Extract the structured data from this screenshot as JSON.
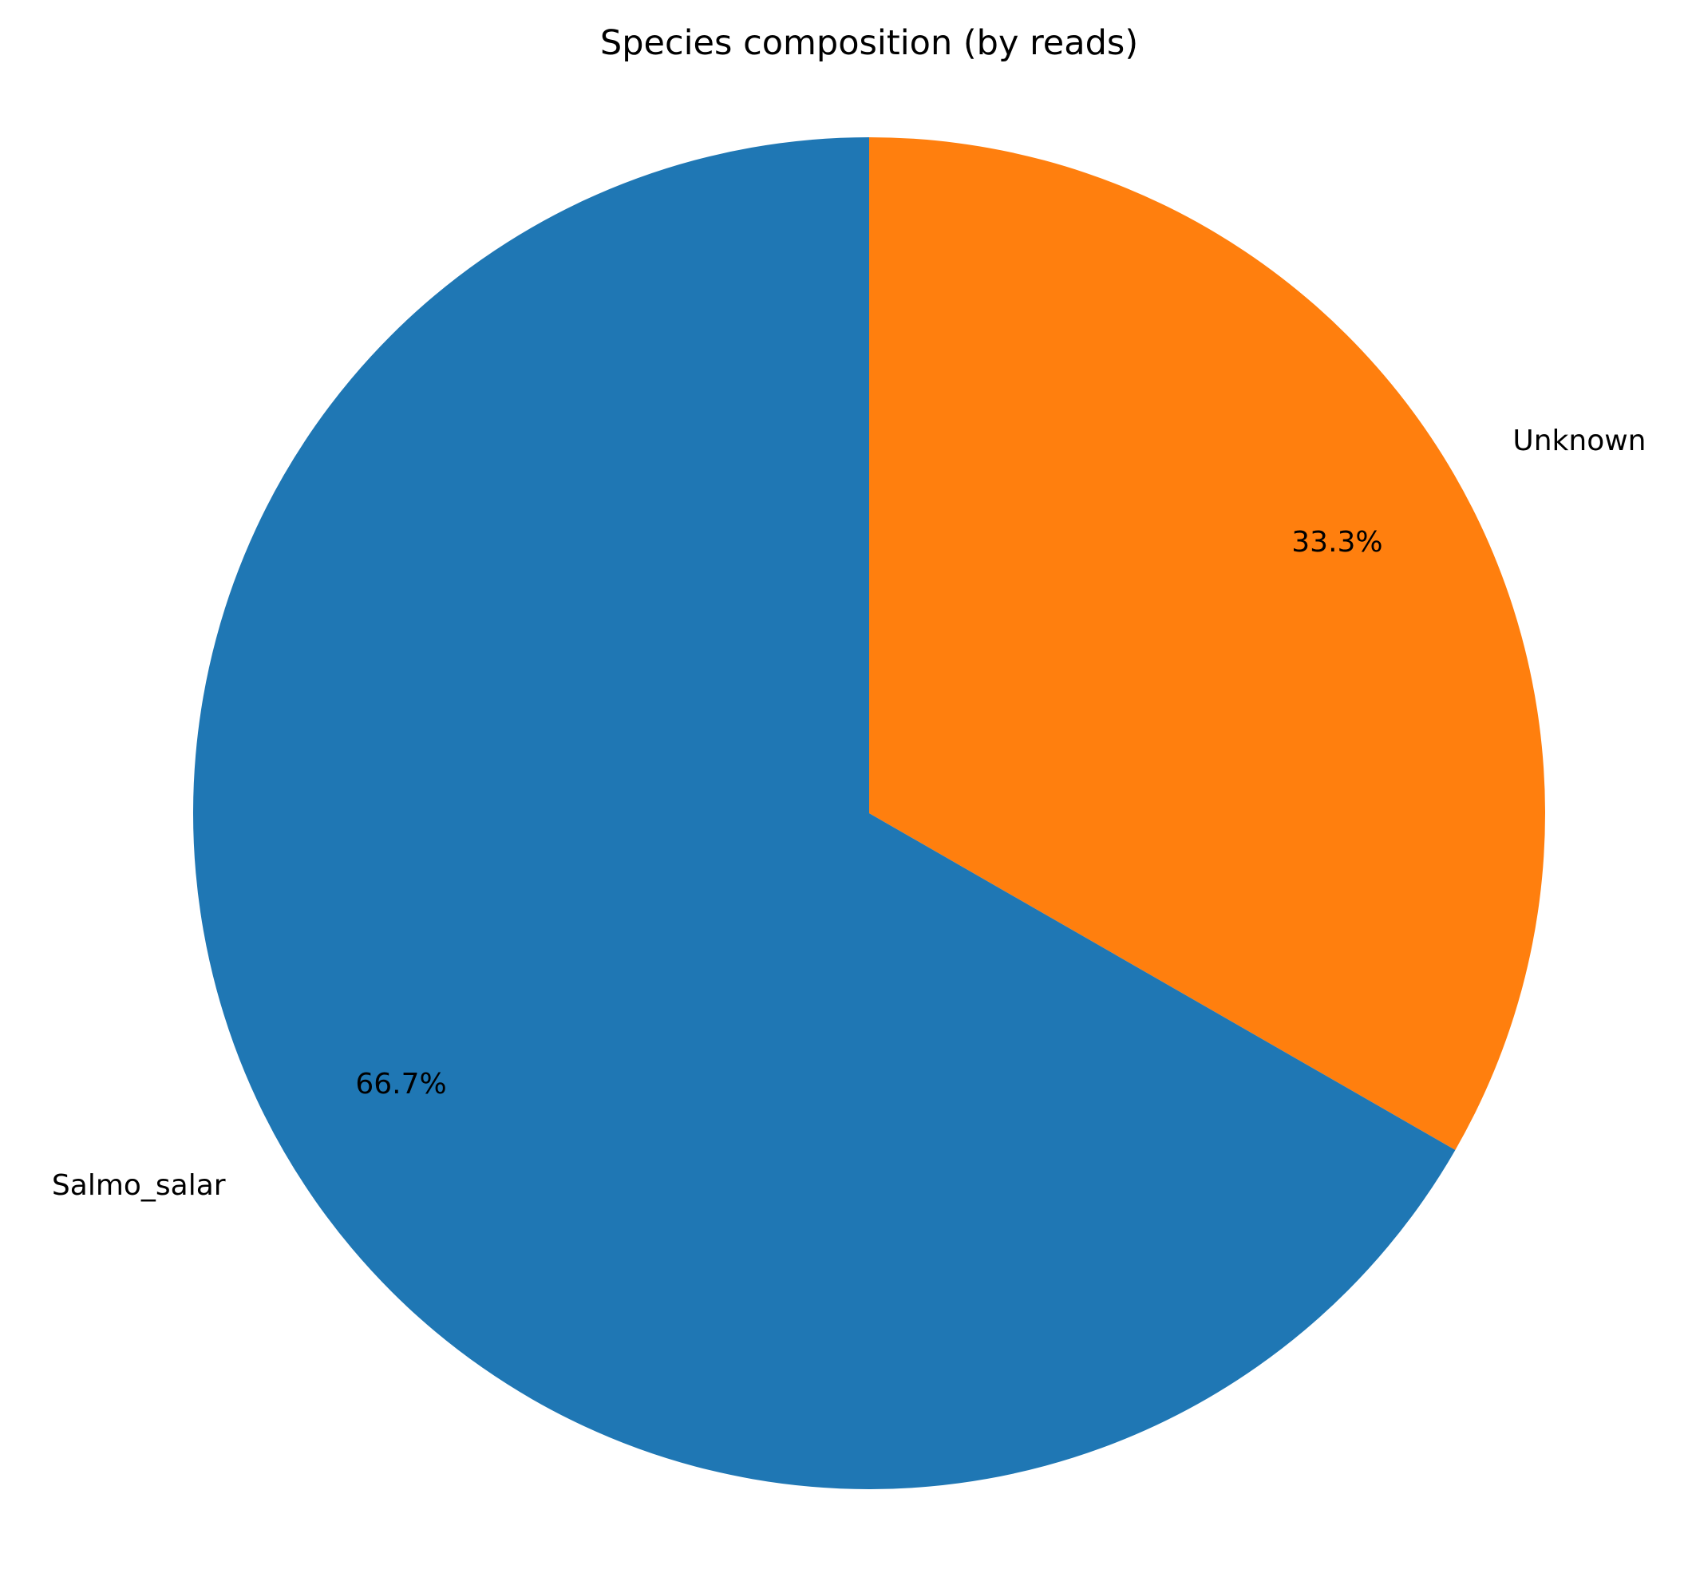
{
  "chart_data": {
    "type": "pie",
    "title": "Species composition (by reads)",
    "start_angle_deg": 90,
    "direction": "clockwise",
    "slices": [
      {
        "label": "Unknown",
        "value": 33.3,
        "pct_label": "33.3%",
        "color": "#ff7f0e"
      },
      {
        "label": "Salmo_salar",
        "value": 66.7,
        "pct_label": "66.7%",
        "color": "#1f77b4"
      }
    ]
  }
}
